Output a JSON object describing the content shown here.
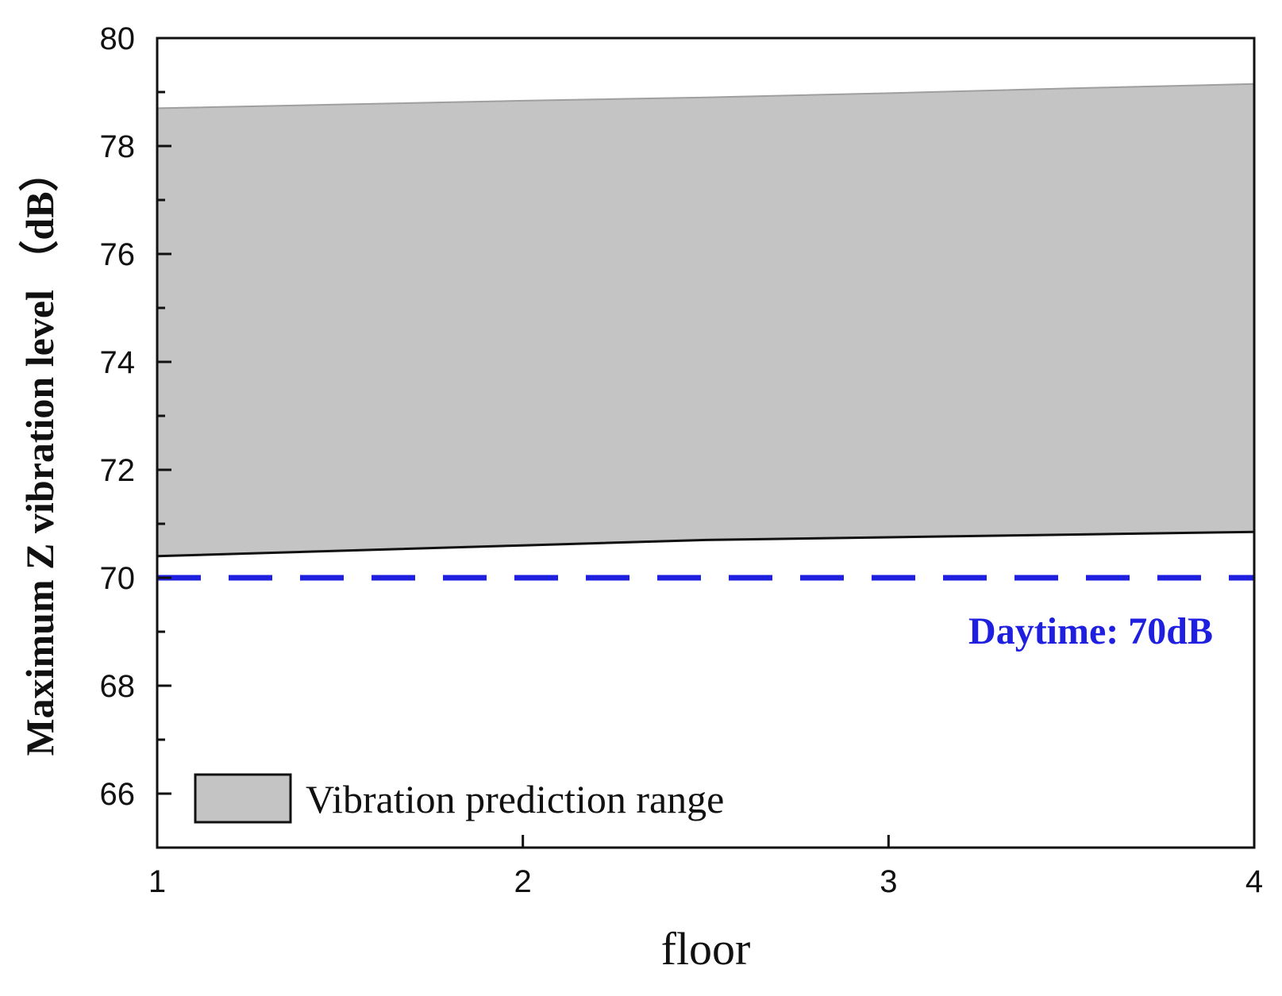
{
  "chart_data": {
    "type": "area",
    "title": "",
    "xlabel": "floor",
    "ylabel": "Maximum Z vibration level （dB）",
    "xlim": [
      1,
      4
    ],
    "ylim": [
      65,
      80
    ],
    "x_ticks": [
      1,
      2,
      3,
      4
    ],
    "y_ticks": [
      66,
      68,
      70,
      72,
      74,
      76,
      78,
      80
    ],
    "grid": false,
    "legend_position": "bottom-left",
    "series": [
      {
        "name": "Vibration prediction range",
        "type": "range",
        "x": [
          1,
          1.5,
          2,
          2.5,
          3,
          3.5,
          4
        ],
        "lower": [
          70.4,
          70.5,
          70.6,
          70.7,
          70.75,
          70.8,
          70.85
        ],
        "upper": [
          78.7,
          78.77,
          78.84,
          78.9,
          78.98,
          79.07,
          79.15
        ],
        "fill_color": "#c4c4c4",
        "edge_color": "#111111"
      }
    ],
    "reference_lines": [
      {
        "name": "Daytime",
        "y": 70,
        "style": "dashed",
        "color": "#1f1fe0",
        "label": "Daytime: 70dB"
      }
    ]
  }
}
